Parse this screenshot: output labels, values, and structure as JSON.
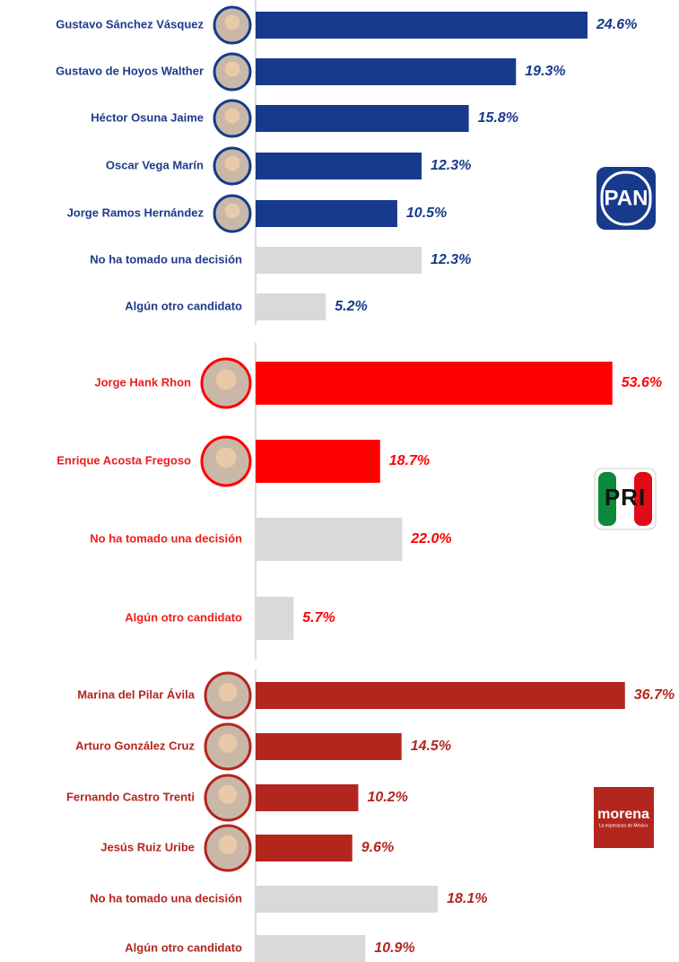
{
  "chart_data": [
    {
      "type": "bar",
      "logo": "PAN",
      "label_color": "#1e3a8a",
      "categories": [
        "Gustavo Sánchez Vásquez",
        "Gustavo de Hoyos Walther",
        "Héctor Osuna Jaime",
        "Oscar Vega Marín",
        "Jorge Ramos Hernández",
        "No ha tomado una decisión",
        "Algún otro candidato"
      ],
      "values": [
        24.6,
        19.3,
        15.8,
        12.3,
        10.5,
        12.3,
        5.2
      ],
      "value_labels": [
        "24.6%",
        "19.3%",
        "15.8%",
        "12.3%",
        "10.5%",
        "12.3%",
        "5.2%"
      ],
      "colors": [
        "#173a8c",
        "#173a8c",
        "#173a8c",
        "#173a8c",
        "#173a8c",
        "#d9d9d9",
        "#d9d9d9"
      ]
    },
    {
      "type": "bar",
      "logo": "PRI",
      "label_color": "#ee1c1c",
      "categories": [
        "Jorge Hank Rhon",
        "Enrique Acosta Fregoso",
        "No ha tomado una decisión",
        "Algún otro candidato"
      ],
      "values": [
        53.6,
        18.7,
        22.0,
        5.7
      ],
      "value_labels": [
        "53.6%",
        "18.7%",
        "22.0%",
        "5.7%"
      ],
      "colors": [
        "#ff0000",
        "#ff0000",
        "#d9d9d9",
        "#d9d9d9"
      ]
    },
    {
      "type": "bar",
      "logo": "morena",
      "logo_subtitle": "La esperanza de México",
      "label_color": "#b3261e",
      "categories": [
        "Marina del Pilar Ávila",
        "Arturo González Cruz",
        "Fernando Castro Trenti",
        "Jesús Ruiz Uribe",
        "No ha tomado una decisión",
        "Algún otro candidato"
      ],
      "values": [
        36.7,
        14.5,
        10.2,
        9.6,
        18.1,
        10.9
      ],
      "value_labels": [
        "36.7%",
        "14.5%",
        "10.2%",
        "9.6%",
        "18.1%",
        "10.9%"
      ],
      "colors": [
        "#b3261e",
        "#b3261e",
        "#b3261e",
        "#b3261e",
        "#d9d9d9",
        "#d9d9d9"
      ]
    }
  ]
}
